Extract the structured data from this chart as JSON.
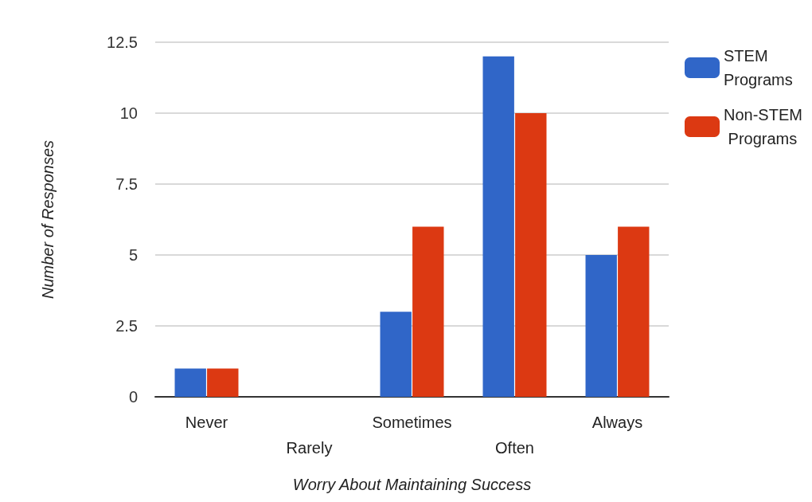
{
  "chart_data": {
    "type": "bar",
    "xlabel": "Worry About Maintaining Success",
    "ylabel": "Number of Responses",
    "categories": [
      "Never",
      "Rarely",
      "Sometimes",
      "Often",
      "Always"
    ],
    "series": [
      {
        "name": "STEM Programs",
        "color": "#3066c8",
        "values": [
          1,
          0,
          3,
          12,
          5
        ]
      },
      {
        "name": "Non-STEM Programs",
        "color": "#dc3912",
        "values": [
          1,
          0,
          6,
          10,
          6
        ]
      }
    ],
    "ylim": [
      0,
      12.5
    ],
    "yticks": [
      0,
      2.5,
      5,
      7.5,
      10,
      12.5
    ],
    "grid": "y",
    "legend": "top right"
  }
}
